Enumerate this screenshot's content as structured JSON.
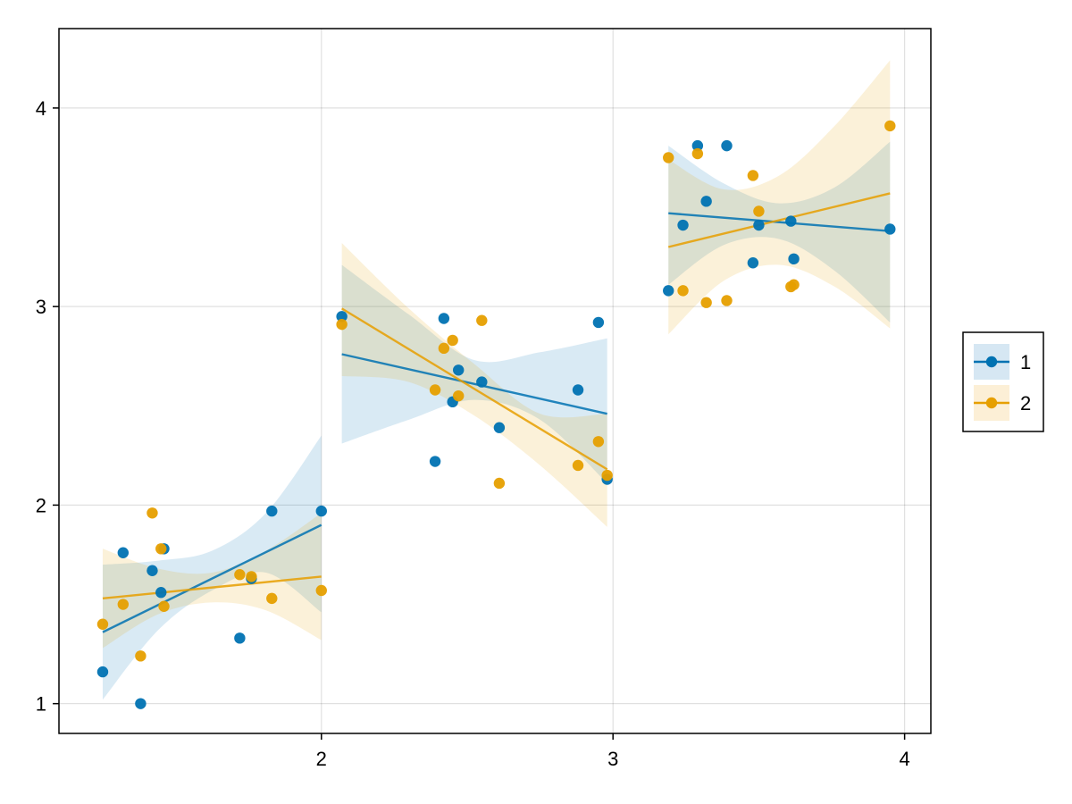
{
  "chart_data": {
    "type": "scatter",
    "title": "",
    "xlabel": "",
    "ylabel": "",
    "xlim": [
      1.1,
      4.09
    ],
    "ylim": [
      0.85,
      4.4
    ],
    "x_ticks": [
      {
        "value": 2,
        "label": "2"
      },
      {
        "value": 3,
        "label": "3"
      },
      {
        "value": 4,
        "label": "4"
      }
    ],
    "y_ticks": [
      {
        "value": 1,
        "label": "1"
      },
      {
        "value": 2,
        "label": "2"
      },
      {
        "value": 3,
        "label": "3"
      },
      {
        "value": 4,
        "label": "4"
      }
    ],
    "grid": true,
    "legend": {
      "placement": "right"
    },
    "series": [
      {
        "name": "1",
        "color": "#0072b2",
        "points": [
          [
            1.25,
            1.16
          ],
          [
            1.32,
            1.76
          ],
          [
            1.38,
            1.0
          ],
          [
            1.42,
            1.67
          ],
          [
            1.45,
            1.56
          ],
          [
            1.46,
            1.78
          ],
          [
            1.72,
            1.33
          ],
          [
            1.76,
            1.63
          ],
          [
            1.83,
            1.97
          ],
          [
            2.0,
            1.97
          ],
          [
            2.07,
            2.95
          ],
          [
            2.39,
            2.22
          ],
          [
            2.42,
            2.94
          ],
          [
            2.45,
            2.52
          ],
          [
            2.47,
            2.68
          ],
          [
            2.55,
            2.62
          ],
          [
            2.61,
            2.39
          ],
          [
            2.88,
            2.58
          ],
          [
            2.95,
            2.92
          ],
          [
            2.98,
            2.13
          ],
          [
            3.19,
            3.08
          ],
          [
            3.24,
            3.41
          ],
          [
            3.29,
            3.81
          ],
          [
            3.32,
            3.53
          ],
          [
            3.39,
            3.81
          ],
          [
            3.48,
            3.22
          ],
          [
            3.5,
            3.41
          ],
          [
            3.61,
            3.43
          ],
          [
            3.62,
            3.24
          ],
          [
            3.95,
            3.39
          ]
        ],
        "fits": [
          {
            "x": [
              1.25,
              2.0
            ],
            "y": [
              1.36,
              1.9
            ],
            "band_x": [
              1.25,
              1.44,
              1.625,
              1.81,
              2.0
            ],
            "band_lo": [
              1.02,
              1.37,
              1.57,
              1.66,
              1.46
            ],
            "band_hi": [
              1.7,
              1.72,
              1.77,
              1.96,
              2.35
            ]
          },
          {
            "x": [
              2.07,
              2.98
            ],
            "y": [
              2.76,
              2.46
            ],
            "band_x": [
              2.07,
              2.3,
              2.525,
              2.75,
              2.98
            ],
            "band_lo": [
              2.31,
              2.43,
              2.53,
              2.43,
              2.11
            ],
            "band_hi": [
              3.21,
              2.96,
              2.73,
              2.77,
              2.84
            ]
          },
          {
            "x": [
              3.19,
              3.95
            ],
            "y": [
              3.47,
              3.38
            ],
            "band_x": [
              3.19,
              3.38,
              3.57,
              3.76,
              3.95
            ],
            "band_lo": [
              3.11,
              3.31,
              3.34,
              3.18,
              2.92
            ],
            "band_hi": [
              3.81,
              3.62,
              3.52,
              3.6,
              3.83
            ]
          }
        ]
      },
      {
        "name": "2",
        "color": "#e69f00",
        "points": [
          [
            1.25,
            1.4
          ],
          [
            1.32,
            1.5
          ],
          [
            1.38,
            1.24
          ],
          [
            1.42,
            1.96
          ],
          [
            1.45,
            1.78
          ],
          [
            1.46,
            1.49
          ],
          [
            1.72,
            1.65
          ],
          [
            1.76,
            1.64
          ],
          [
            1.83,
            1.53
          ],
          [
            2.0,
            1.57
          ],
          [
            2.07,
            2.91
          ],
          [
            2.39,
            2.58
          ],
          [
            2.42,
            2.79
          ],
          [
            2.45,
            2.83
          ],
          [
            2.47,
            2.55
          ],
          [
            2.55,
            2.93
          ],
          [
            2.61,
            2.11
          ],
          [
            2.88,
            2.2
          ],
          [
            2.95,
            2.32
          ],
          [
            2.98,
            2.15
          ],
          [
            3.19,
            3.75
          ],
          [
            3.24,
            3.08
          ],
          [
            3.29,
            3.77
          ],
          [
            3.32,
            3.02
          ],
          [
            3.39,
            3.03
          ],
          [
            3.48,
            3.66
          ],
          [
            3.5,
            3.48
          ],
          [
            3.61,
            3.1
          ],
          [
            3.62,
            3.11
          ],
          [
            3.95,
            3.91
          ]
        ],
        "fits": [
          {
            "x": [
              1.25,
              2.0
            ],
            "y": [
              1.53,
              1.64
            ],
            "band_x": [
              1.25,
              1.44,
              1.625,
              1.81,
              2.0
            ],
            "band_lo": [
              1.28,
              1.45,
              1.51,
              1.47,
              1.32
            ],
            "band_hi": [
              1.78,
              1.68,
              1.66,
              1.77,
              1.96
            ]
          },
          {
            "x": [
              2.07,
              2.98
            ],
            "y": [
              2.99,
              2.18
            ],
            "band_x": [
              2.07,
              2.3,
              2.525,
              2.75,
              2.98
            ],
            "band_lo": [
              2.65,
              2.62,
              2.45,
              2.2,
              1.89
            ],
            "band_hi": [
              3.32,
              2.99,
              2.71,
              2.46,
              2.46
            ]
          },
          {
            "x": [
              3.19,
              3.95
            ],
            "y": [
              3.3,
              3.57
            ],
            "band_x": [
              3.19,
              3.38,
              3.57,
              3.76,
              3.95
            ],
            "band_lo": [
              2.86,
              3.13,
              3.21,
              3.1,
              2.89
            ],
            "band_hi": [
              3.74,
              3.59,
              3.66,
              3.91,
              4.24
            ]
          }
        ]
      }
    ]
  }
}
